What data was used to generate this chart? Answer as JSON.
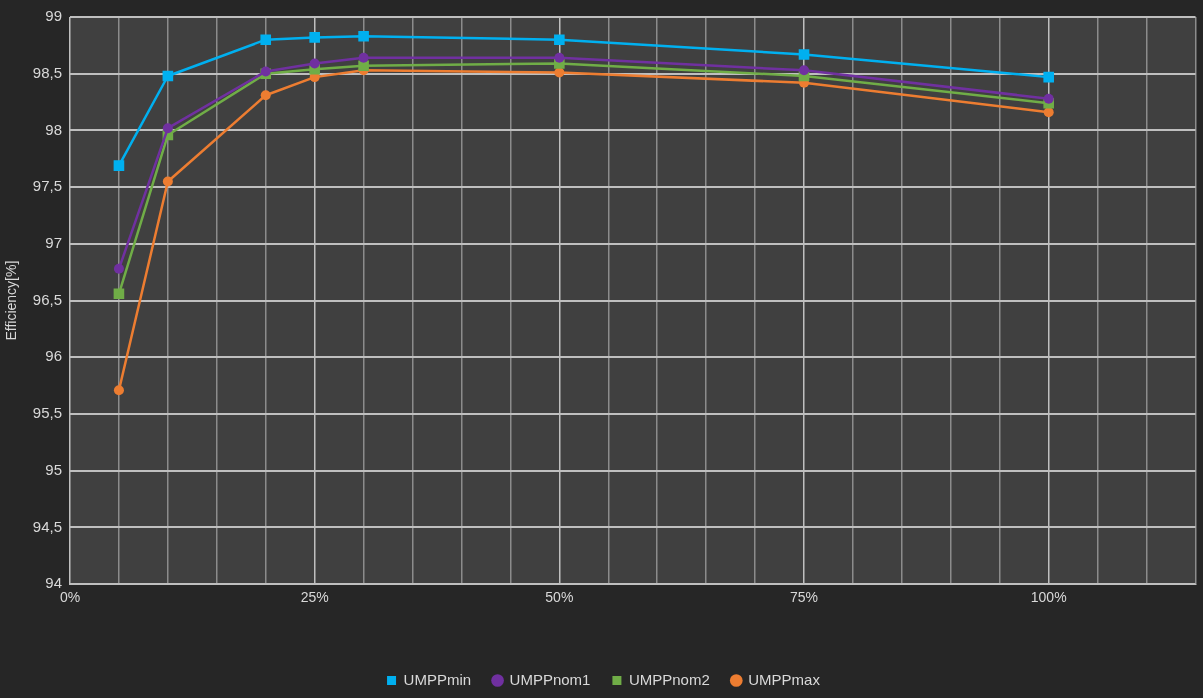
{
  "chart_data": {
    "type": "line",
    "ylabel": "Efficiency[%]",
    "x": [
      5,
      10,
      20,
      25,
      30,
      50,
      75,
      100
    ],
    "xlim": [
      0,
      115
    ],
    "xticks": [
      {
        "value": 0,
        "label": "0%"
      },
      {
        "value": 5,
        "label": null
      },
      {
        "value": 10,
        "label": null
      },
      {
        "value": 15,
        "label": null
      },
      {
        "value": 20,
        "label": null
      },
      {
        "value": 25,
        "label": "25%"
      },
      {
        "value": 30,
        "label": null
      },
      {
        "value": 35,
        "label": null
      },
      {
        "value": 40,
        "label": null
      },
      {
        "value": 45,
        "label": null
      },
      {
        "value": 50,
        "label": "50%"
      },
      {
        "value": 55,
        "label": null
      },
      {
        "value": 60,
        "label": null
      },
      {
        "value": 65,
        "label": null
      },
      {
        "value": 70,
        "label": null
      },
      {
        "value": 75,
        "label": "75%"
      },
      {
        "value": 80,
        "label": null
      },
      {
        "value": 85,
        "label": null
      },
      {
        "value": 90,
        "label": null
      },
      {
        "value": 95,
        "label": null
      },
      {
        "value": 100,
        "label": "100%"
      },
      {
        "value": 105,
        "label": null
      },
      {
        "value": 110,
        "label": null
      },
      {
        "value": 115,
        "label": null
      }
    ],
    "ylim": [
      94,
      99
    ],
    "yticks": [
      94,
      {
        "value": 94.5,
        "label": "94,5"
      },
      95,
      {
        "value": 95.5,
        "label": "95,5"
      },
      96,
      {
        "value": 96.5,
        "label": "96,5"
      },
      97,
      {
        "value": 97.5,
        "label": "97,5"
      },
      98,
      {
        "value": 98.5,
        "label": "98,5"
      },
      99
    ],
    "grid": true,
    "legend": "bottom",
    "line_style": "solid",
    "series": [
      {
        "name": "UMPPmin",
        "color": "#00b0f0",
        "marker": "square",
        "values": [
          97.69,
          98.48,
          98.8,
          98.82,
          98.83,
          98.8,
          98.67,
          98.47
        ]
      },
      {
        "name": "UMPPnom1",
        "color": "#7030a0",
        "marker": "circle",
        "values": [
          96.78,
          98.02,
          98.52,
          98.59,
          98.64,
          98.64,
          98.53,
          98.28
        ]
      },
      {
        "name": "UMPPnom2",
        "color": "#70ad47",
        "marker": "square",
        "values": [
          96.56,
          97.96,
          98.5,
          98.54,
          98.57,
          98.59,
          98.48,
          98.24
        ]
      },
      {
        "name": "UMPPmax",
        "color": "#ed7d31",
        "marker": "circle",
        "values": [
          95.71,
          97.55,
          98.31,
          98.47,
          98.53,
          98.51,
          98.42,
          98.16
        ]
      }
    ]
  }
}
